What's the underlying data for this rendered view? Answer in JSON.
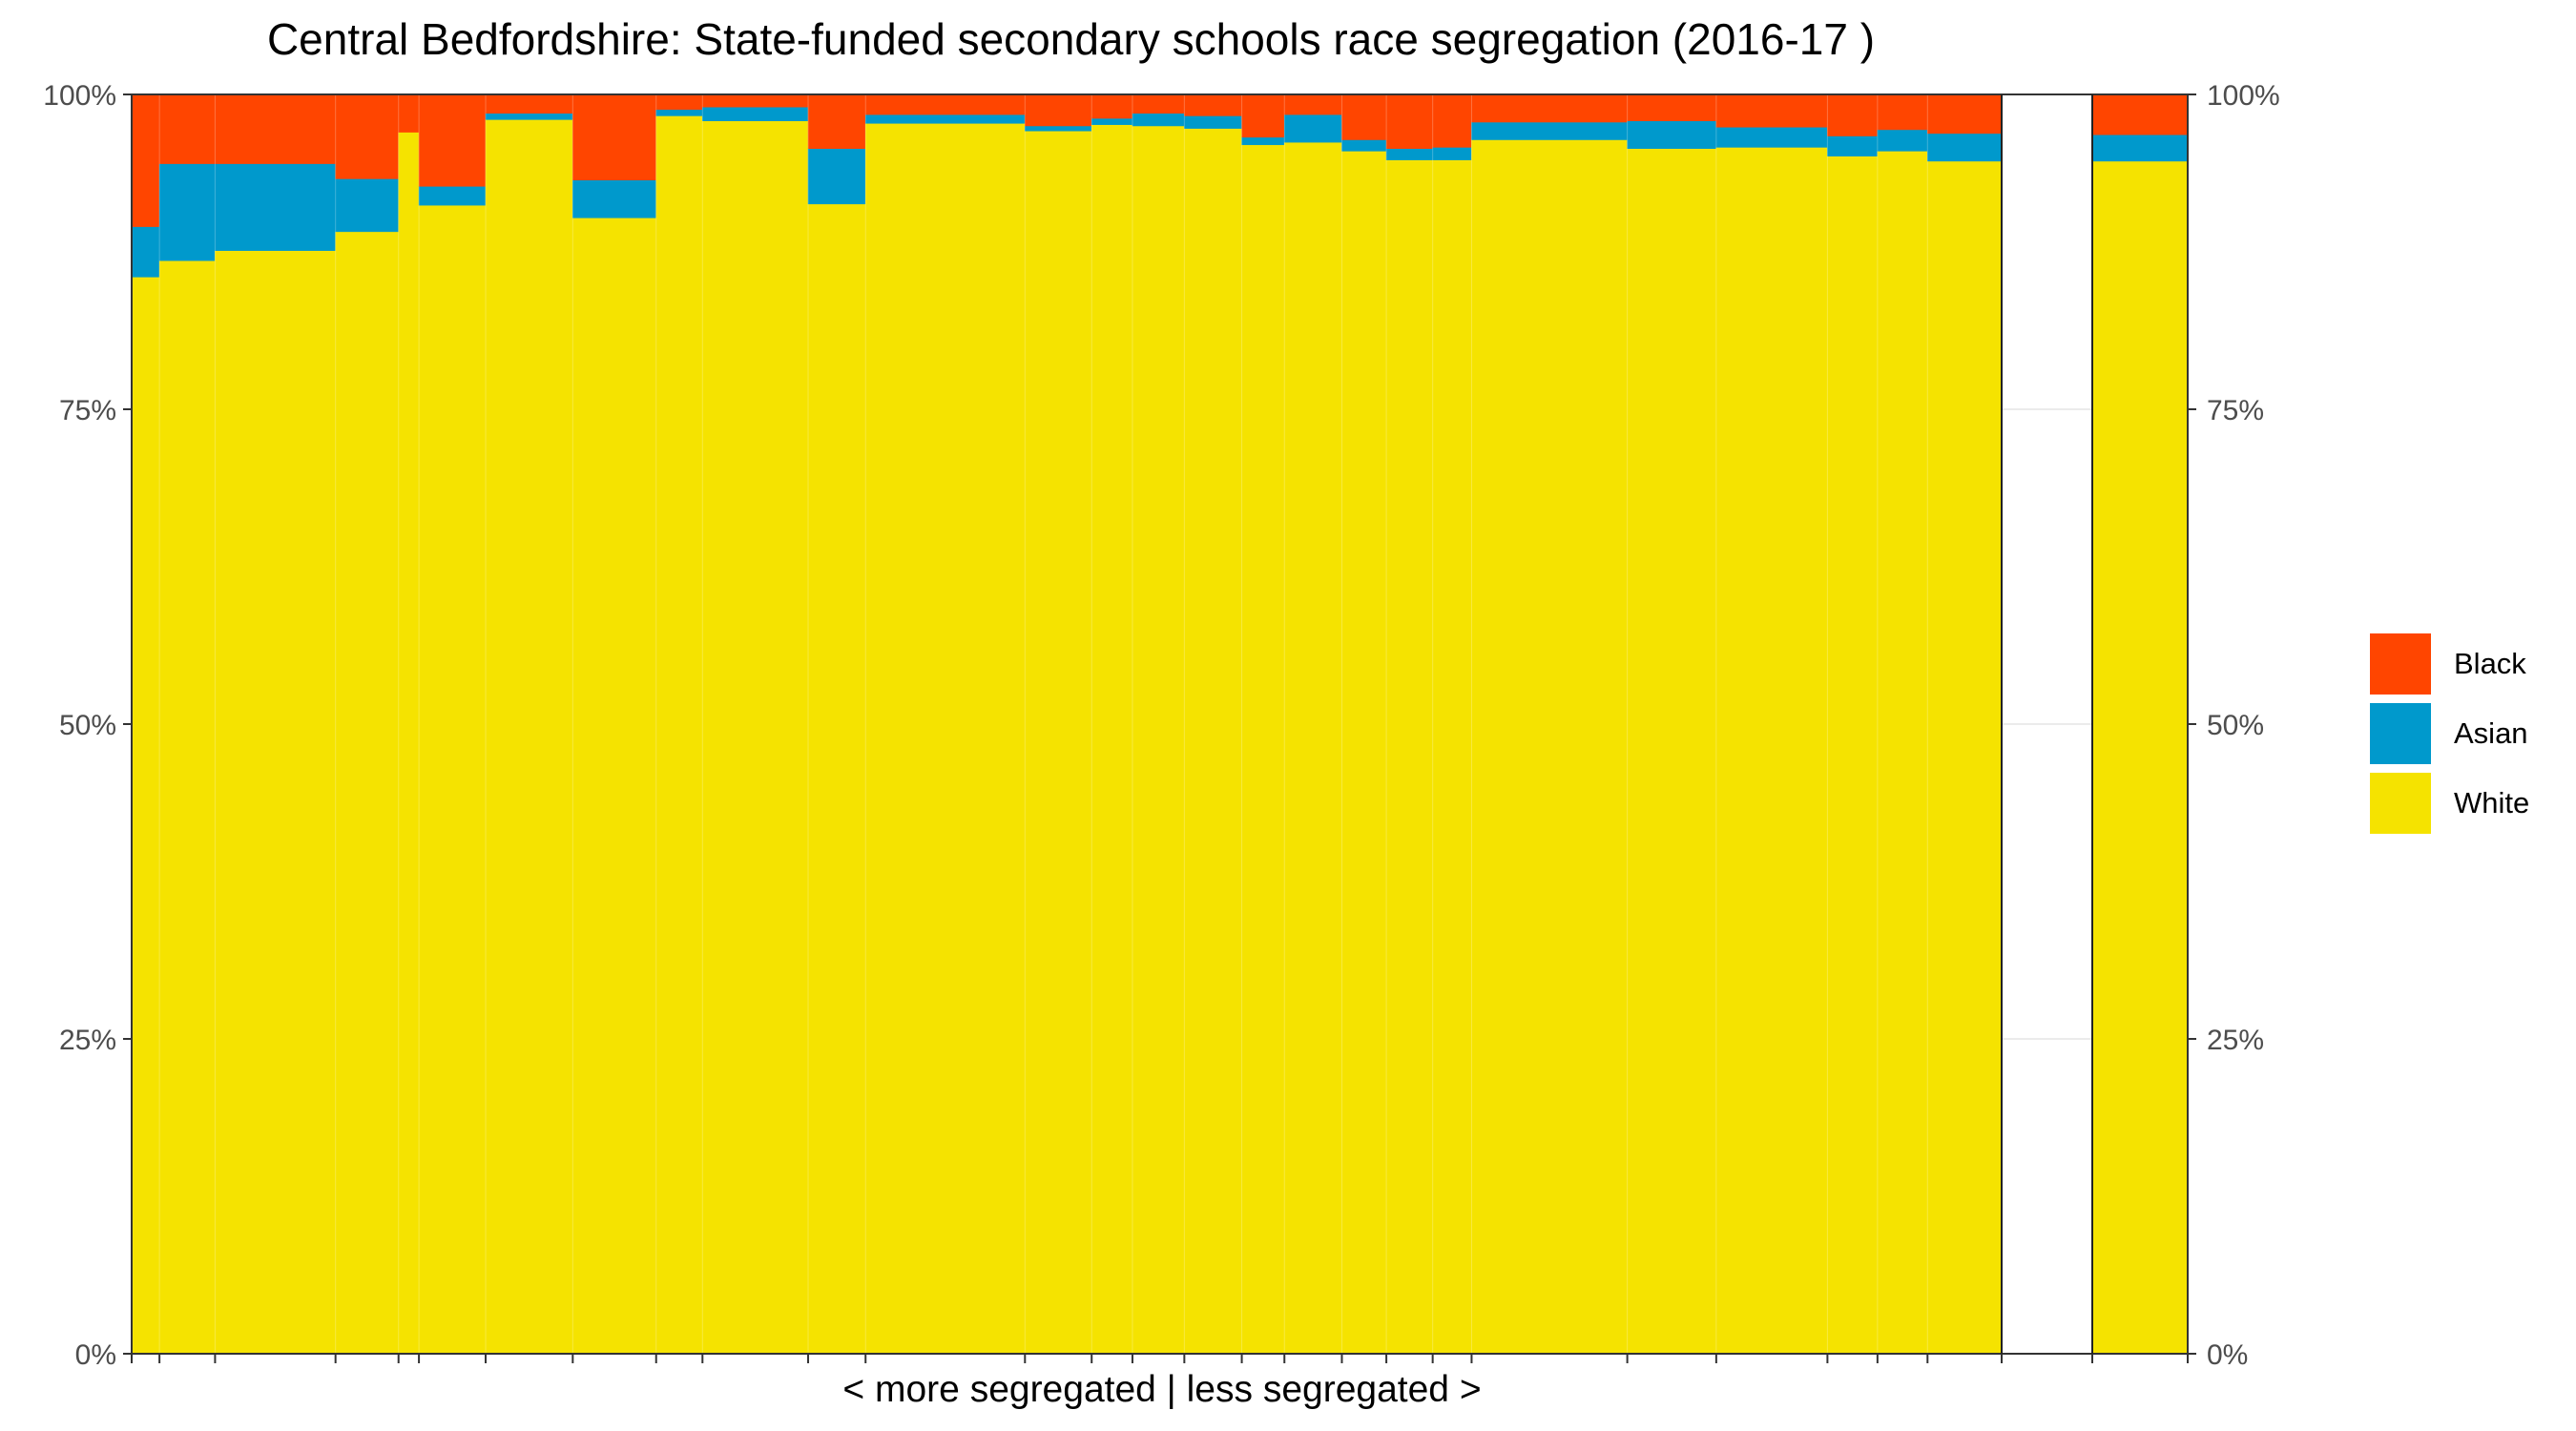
{
  "chart_data": {
    "type": "bar",
    "title": "Central Bedfordshire: State-funded secondary schools race segregation (2016-17 )",
    "xlabel": "< more segregated | less segregated >",
    "ylabel": "",
    "ylim": [
      0,
      1
    ],
    "y_ticks": [
      "0%",
      "25%",
      "50%",
      "75%",
      "100%"
    ],
    "stacked": true,
    "variable_width": true,
    "legend_position": "right",
    "series_order": [
      "White",
      "Asian",
      "Black"
    ],
    "colors": {
      "Black": "#FF4500",
      "Asian": "#0099CC",
      "White": "#F5E300"
    },
    "legend": [
      "Black",
      "Asian",
      "White"
    ],
    "bars": [
      {
        "width": 1.5,
        "white": 85.5,
        "asian": 4.0,
        "black": 10.5
      },
      {
        "width": 3.0,
        "white": 86.8,
        "asian": 7.7,
        "black": 5.5
      },
      {
        "width": 6.5,
        "white": 87.6,
        "asian": 6.9,
        "black": 5.5
      },
      {
        "width": 3.4,
        "white": 89.1,
        "asian": 4.2,
        "black": 6.7
      },
      {
        "width": 1.1,
        "white": 97.0,
        "asian": 0.0,
        "black": 3.0
      },
      {
        "width": 3.6,
        "white": 91.2,
        "asian": 1.5,
        "black": 7.3
      },
      {
        "width": 4.7,
        "white": 98.0,
        "asian": 0.5,
        "black": 1.5
      },
      {
        "width": 4.5,
        "white": 90.2,
        "asian": 3.0,
        "black": 6.8
      },
      {
        "width": 2.5,
        "white": 98.3,
        "asian": 0.5,
        "black": 1.2
      },
      {
        "width": 5.7,
        "white": 97.9,
        "asian": 1.1,
        "black": 1.0
      },
      {
        "width": 3.1,
        "white": 91.3,
        "asian": 4.4,
        "black": 4.3
      },
      {
        "width": 8.6,
        "white": 97.7,
        "asian": 0.7,
        "black": 1.6
      },
      {
        "width": 3.6,
        "white": 97.1,
        "asian": 0.4,
        "black": 2.5
      },
      {
        "width": 2.2,
        "white": 97.6,
        "asian": 0.5,
        "black": 1.9
      },
      {
        "width": 2.8,
        "white": 97.5,
        "asian": 1.0,
        "black": 1.5
      },
      {
        "width": 3.1,
        "white": 97.3,
        "asian": 1.0,
        "black": 1.7
      },
      {
        "width": 2.3,
        "white": 96.0,
        "asian": 0.6,
        "black": 3.4
      },
      {
        "width": 3.1,
        "white": 96.2,
        "asian": 2.2,
        "black": 1.6
      },
      {
        "width": 2.4,
        "white": 95.5,
        "asian": 0.9,
        "black": 3.6
      },
      {
        "width": 2.5,
        "white": 94.8,
        "asian": 0.9,
        "black": 4.3
      },
      {
        "width": 2.1,
        "white": 94.8,
        "asian": 1.0,
        "black": 4.2
      },
      {
        "width": 8.4,
        "white": 96.4,
        "asian": 1.4,
        "black": 2.2
      },
      {
        "width": 4.8,
        "white": 95.7,
        "asian": 2.2,
        "black": 2.1
      },
      {
        "width": 6.0,
        "white": 95.8,
        "asian": 1.6,
        "black": 2.6
      },
      {
        "width": 2.7,
        "white": 95.1,
        "asian": 1.6,
        "black": 3.3
      },
      {
        "width": 2.7,
        "white": 95.5,
        "asian": 1.7,
        "black": 2.8
      },
      {
        "width": 4.0,
        "white": 94.7,
        "asian": 2.2,
        "black": 3.1
      }
    ],
    "summary_bar": {
      "white": 94.7,
      "asian": 2.1,
      "black": 3.2
    }
  }
}
